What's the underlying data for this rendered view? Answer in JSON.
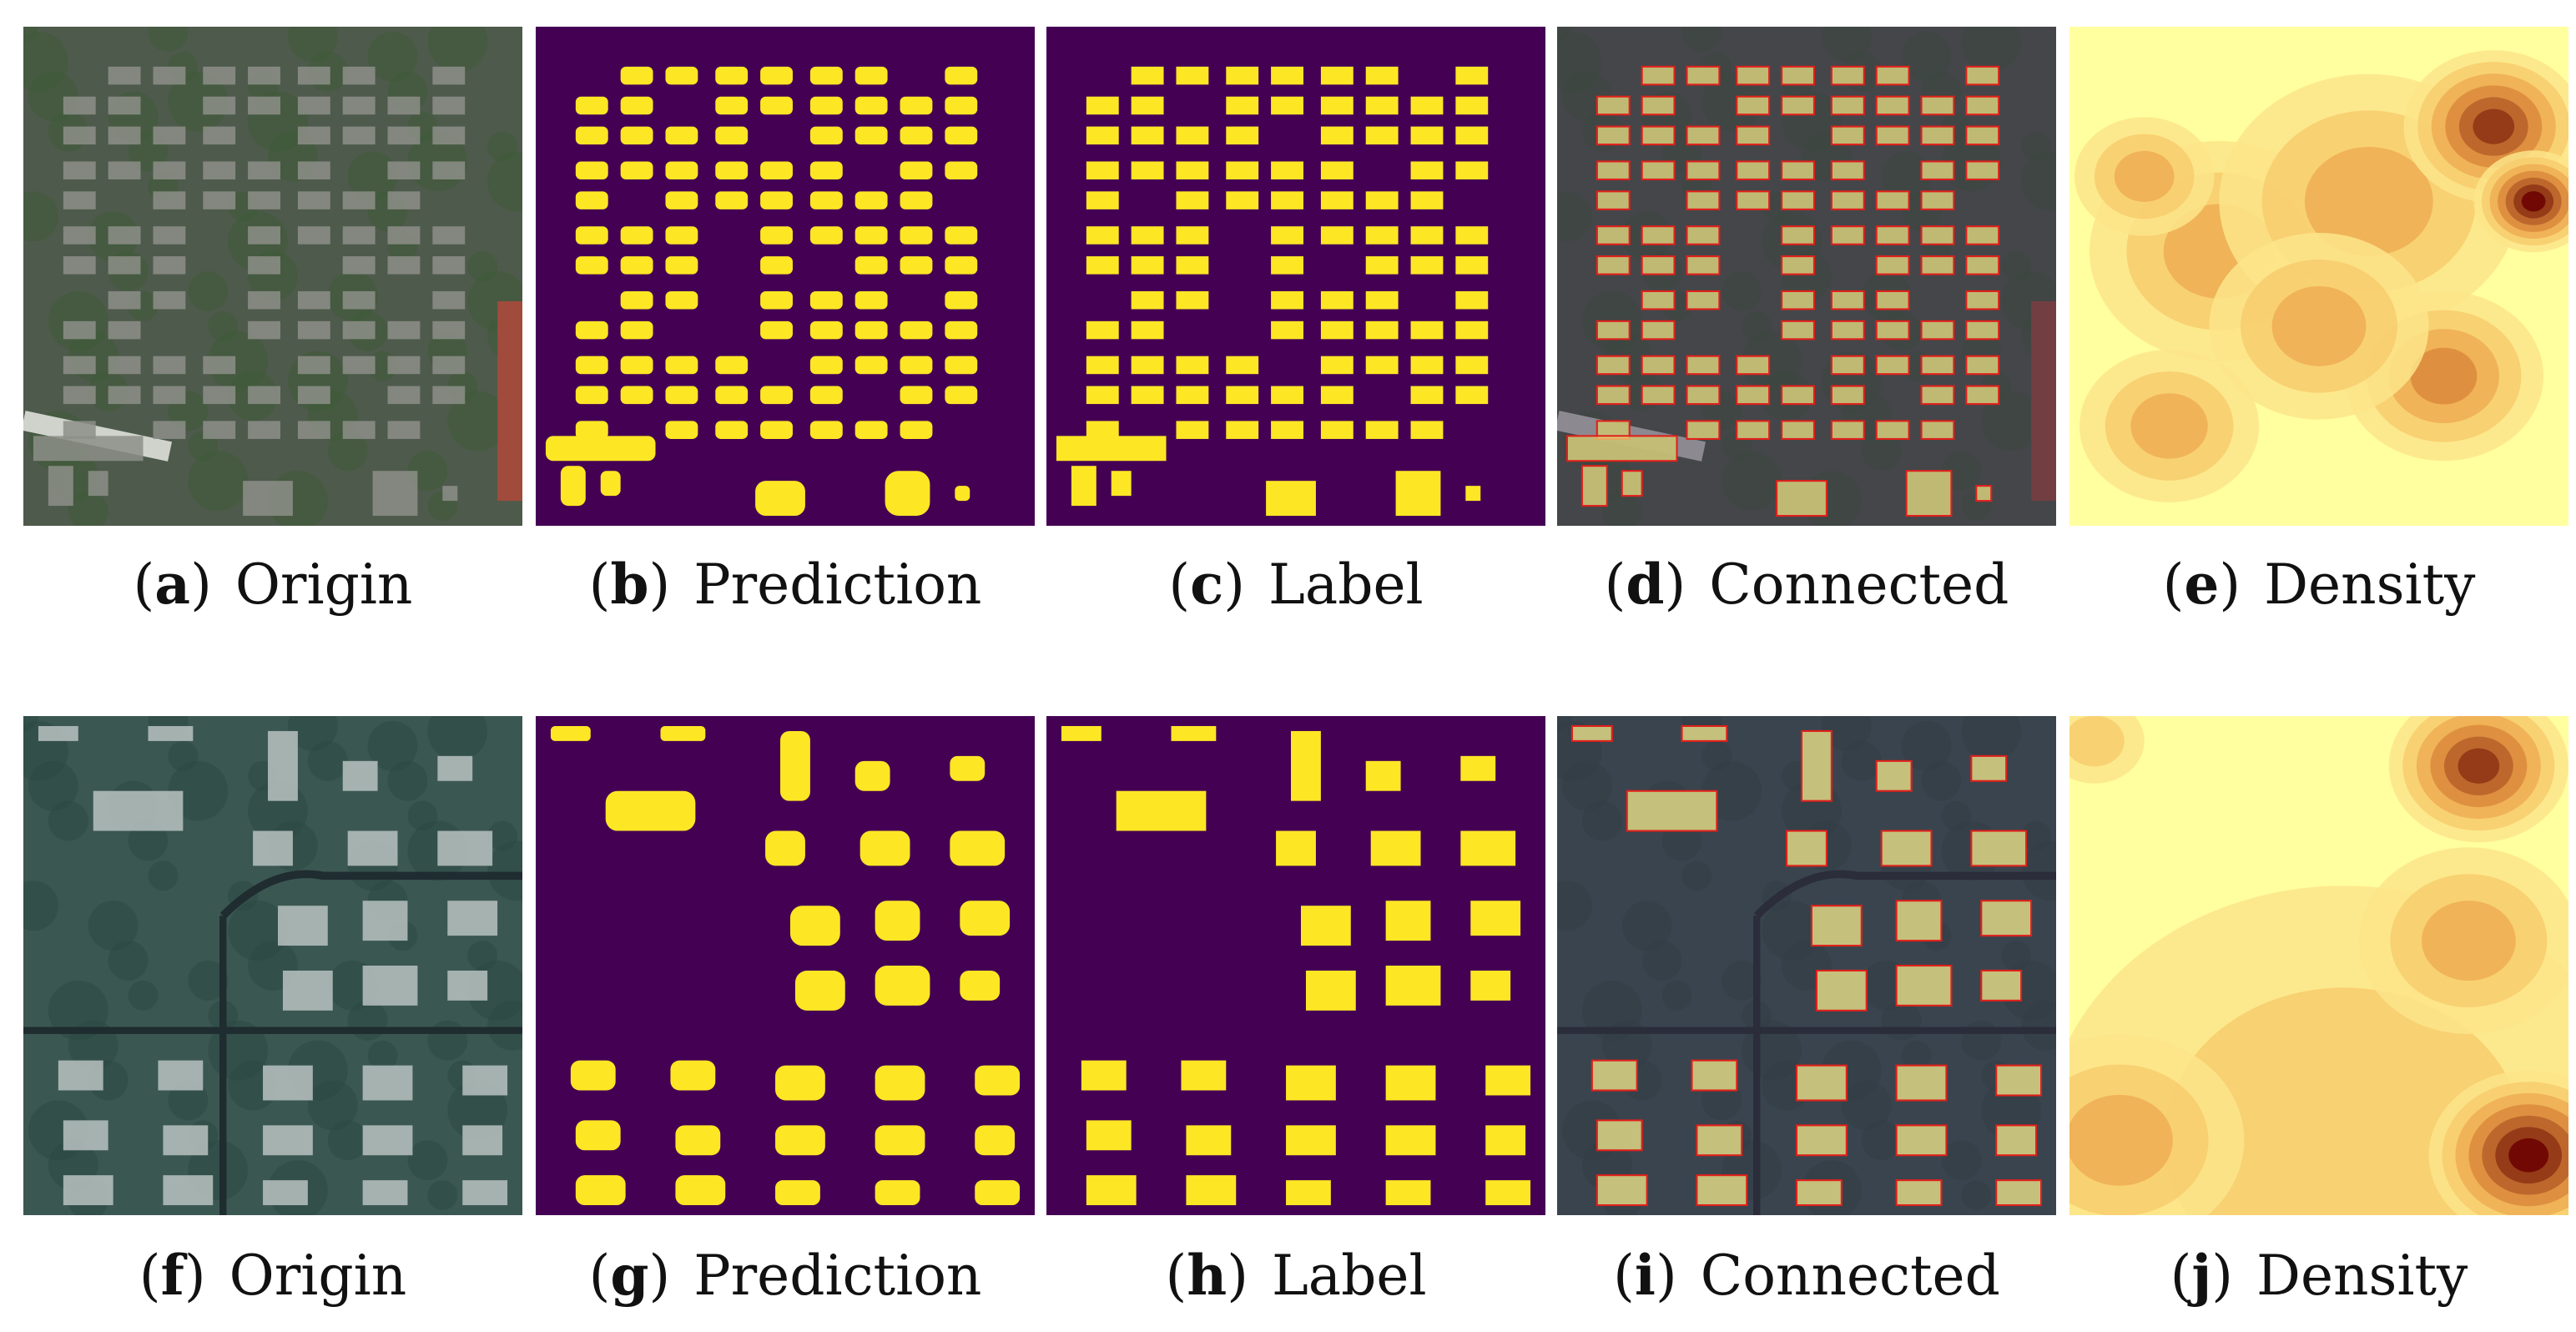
{
  "figure": {
    "rows": [
      {
        "panels": [
          {
            "letter": "a",
            "title": "Origin",
            "kind": "origin",
            "variant": "dense"
          },
          {
            "letter": "b",
            "title": "Prediction",
            "kind": "prediction",
            "variant": "dense"
          },
          {
            "letter": "c",
            "title": "Label",
            "kind": "label",
            "variant": "dense"
          },
          {
            "letter": "d",
            "title": "Connected",
            "kind": "connected",
            "variant": "dense"
          },
          {
            "letter": "e",
            "title": "Density",
            "kind": "density",
            "variant": "dense"
          }
        ]
      },
      {
        "panels": [
          {
            "letter": "f",
            "title": "Origin",
            "kind": "origin",
            "variant": "sparse"
          },
          {
            "letter": "g",
            "title": "Prediction",
            "kind": "prediction",
            "variant": "sparse"
          },
          {
            "letter": "h",
            "title": "Label",
            "kind": "label",
            "variant": "sparse"
          },
          {
            "letter": "i",
            "title": "Connected",
            "kind": "connected",
            "variant": "sparse"
          },
          {
            "letter": "j",
            "title": "Density",
            "kind": "density",
            "variant": "sparse"
          }
        ]
      }
    ],
    "colors": {
      "mask_background": "#440154",
      "mask_building": "#fde725",
      "outline": "#e0201b",
      "density_low": "#ffffa0",
      "density_high": "#6b0000"
    }
  }
}
